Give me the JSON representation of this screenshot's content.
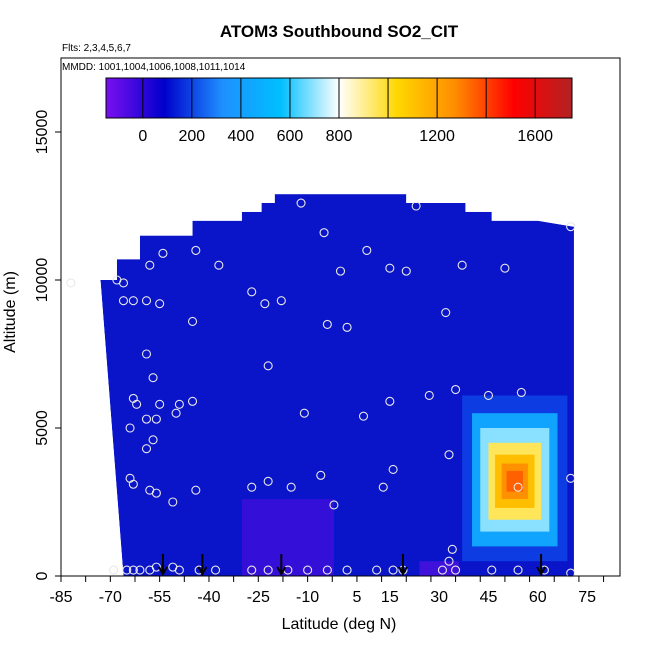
{
  "chart_data": {
    "type": "heatmap",
    "title": "ATOM3 Southbound SO2_CIT",
    "flights_label": "Flts: 2,3,4,5,6,7",
    "mmdd_label": "MMDD: 1001,1004,1006,1008,1011,1014",
    "xlabel": "Latitude (deg N)",
    "ylabel": "Altitude (m)",
    "xlim": [
      -85,
      85
    ],
    "ylim": [
      0,
      17500
    ],
    "xticks": [
      -85,
      -70,
      -55,
      -40,
      -25,
      -10,
      5,
      15,
      30,
      45,
      60,
      75
    ],
    "yticks": [
      0,
      5000,
      10000,
      15000
    ],
    "colorbar": {
      "range": [
        -150,
        1750
      ],
      "ticks": [
        0,
        200,
        400,
        600,
        800,
        1200,
        1600
      ],
      "colors": [
        "#7a10f0",
        "#0000cc",
        "#1e90ff",
        "#00bfff",
        "#ffffff",
        "#ffd700",
        "#ff8c00",
        "#ff0000",
        "#b22222"
      ],
      "dividers": [
        200,
        400,
        600,
        800,
        1000,
        1200,
        1400,
        1600
      ]
    },
    "background_color": "#0a14c8",
    "curtain_outline": [
      [
        -73,
        10000
      ],
      [
        -68,
        10000
      ],
      [
        -68,
        10700
      ],
      [
        -61,
        10700
      ],
      [
        -61,
        11500
      ],
      [
        -45,
        11500
      ],
      [
        -45,
        12000
      ],
      [
        -30,
        12000
      ],
      [
        -30,
        12300
      ],
      [
        -24,
        12300
      ],
      [
        -24,
        12600
      ],
      [
        -20,
        12600
      ],
      [
        -20,
        12900
      ],
      [
        20,
        12900
      ],
      [
        20,
        12600
      ],
      [
        38,
        12600
      ],
      [
        38,
        12300
      ],
      [
        46,
        12300
      ],
      [
        46,
        12000
      ],
      [
        60,
        12000
      ],
      [
        71,
        11800
      ],
      [
        71,
        0
      ],
      [
        -66,
        0
      ]
    ],
    "hotspot": {
      "lat": 53,
      "alt": 3200,
      "peak": 1500
    },
    "low_patches": [
      {
        "lat_range": [
          -30,
          -2
        ],
        "alt_range": [
          0,
          2600
        ],
        "value": -80
      },
      {
        "lat_range": [
          24,
          36
        ],
        "alt_range": [
          0,
          500
        ],
        "value": -120
      }
    ],
    "observations": [
      [
        -82,
        9900
      ],
      [
        -68,
        10000
      ],
      [
        -66,
        9900
      ],
      [
        -58,
        10500
      ],
      [
        -54,
        10900
      ],
      [
        -44,
        11000
      ],
      [
        -37,
        10500
      ],
      [
        -66,
        9300
      ],
      [
        -63,
        9300
      ],
      [
        -59,
        9300
      ],
      [
        -55,
        9200
      ],
      [
        -45,
        8600
      ],
      [
        -27,
        9600
      ],
      [
        -23,
        9200
      ],
      [
        -18,
        9300
      ],
      [
        -12,
        12600
      ],
      [
        -5,
        11600
      ],
      [
        0,
        10300
      ],
      [
        8,
        11000
      ],
      [
        15,
        10400
      ],
      [
        20,
        10300
      ],
      [
        23,
        12500
      ],
      [
        32,
        8900
      ],
      [
        37,
        10500
      ],
      [
        50,
        10400
      ],
      [
        70,
        11800
      ],
      [
        -4,
        8500
      ],
      [
        2,
        8400
      ],
      [
        -59,
        7500
      ],
      [
        -57,
        6700
      ],
      [
        -22,
        7100
      ],
      [
        -63,
        6000
      ],
      [
        -62,
        5800
      ],
      [
        -55,
        5800
      ],
      [
        -49,
        5800
      ],
      [
        -45,
        5900
      ],
      [
        -59,
        5300
      ],
      [
        -56,
        5300
      ],
      [
        -50,
        5500
      ],
      [
        -57,
        4600
      ],
      [
        -59,
        4300
      ],
      [
        -64,
        5000
      ],
      [
        -11,
        5500
      ],
      [
        7,
        5400
      ],
      [
        15,
        5900
      ],
      [
        27,
        6100
      ],
      [
        35,
        6300
      ],
      [
        45,
        6100
      ],
      [
        55,
        6200
      ],
      [
        33,
        4100
      ],
      [
        -64,
        3300
      ],
      [
        -63,
        3100
      ],
      [
        -58,
        2900
      ],
      [
        -56,
        2800
      ],
      [
        -51,
        2500
      ],
      [
        -44,
        2900
      ],
      [
        -27,
        3000
      ],
      [
        -22,
        3200
      ],
      [
        -15,
        3000
      ],
      [
        -6,
        3400
      ],
      [
        -2,
        2400
      ],
      [
        13,
        3000
      ],
      [
        16,
        3600
      ],
      [
        54,
        3000
      ],
      [
        70,
        3300
      ],
      [
        -69,
        200
      ],
      [
        -65,
        200
      ],
      [
        -63,
        200
      ],
      [
        -61,
        200
      ],
      [
        -58,
        200
      ],
      [
        -56,
        300
      ],
      [
        -51,
        300
      ],
      [
        -49,
        200
      ],
      [
        -43,
        200
      ],
      [
        -38,
        200
      ],
      [
        -27,
        200
      ],
      [
        -22,
        200
      ],
      [
        -16,
        200
      ],
      [
        -10,
        200
      ],
      [
        -4,
        200
      ],
      [
        2,
        200
      ],
      [
        11,
        200
      ],
      [
        16,
        200
      ],
      [
        19,
        200
      ],
      [
        31,
        200
      ],
      [
        33,
        500
      ],
      [
        34,
        900
      ],
      [
        35,
        200
      ],
      [
        46,
        200
      ],
      [
        54,
        200
      ],
      [
        70,
        100
      ],
      [
        62,
        200
      ]
    ],
    "flight_markers": [
      -54,
      -42,
      -18,
      19,
      61
    ]
  }
}
